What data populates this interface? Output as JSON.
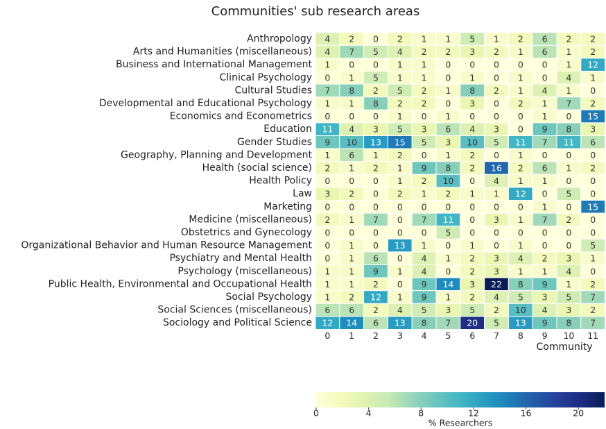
{
  "chart_data": {
    "type": "heatmap",
    "title": "Communities' sub research areas",
    "x_label": "Community",
    "x": [
      0,
      1,
      2,
      3,
      4,
      5,
      6,
      7,
      8,
      9,
      10,
      11
    ],
    "y": [
      "Anthropology",
      "Arts and Humanities (miscellaneous)",
      "Business and International Management",
      "Clinical Psychology",
      "Cultural Studies",
      "Developmental and Educational Psychology",
      "Economics and Econometrics",
      "Education",
      "Gender Studies",
      "Geography, Planning and Development",
      "Health (social science)",
      "Health Policy",
      "Law",
      "Marketing",
      "Medicine (miscellaneous)",
      "Obstetrics and Gynecology",
      "Organizational Behavior and Human Resource Management",
      "Psychiatry and Mental Health",
      "Psychology (miscellaneous)",
      "Public Health, Environmental and Occupational Health",
      "Social Psychology",
      "Social Sciences (miscellaneous)",
      "Sociology and Political Science"
    ],
    "values": [
      [
        4,
        2,
        0,
        2,
        1,
        1,
        5,
        1,
        2,
        6,
        2,
        2
      ],
      [
        4,
        7,
        5,
        4,
        2,
        2,
        3,
        2,
        1,
        6,
        1,
        2
      ],
      [
        1,
        0,
        0,
        1,
        1,
        0,
        0,
        0,
        0,
        0,
        1,
        12
      ],
      [
        0,
        1,
        5,
        1,
        1,
        0,
        1,
        0,
        1,
        0,
        4,
        1
      ],
      [
        7,
        8,
        2,
        5,
        2,
        1,
        8,
        2,
        1,
        4,
        1,
        0
      ],
      [
        1,
        1,
        8,
        2,
        2,
        0,
        3,
        0,
        2,
        1,
        7,
        2
      ],
      [
        0,
        0,
        0,
        1,
        0,
        1,
        0,
        0,
        0,
        1,
        0,
        15
      ],
      [
        11,
        4,
        3,
        5,
        3,
        6,
        4,
        3,
        0,
        9,
        8,
        3
      ],
      [
        9,
        10,
        13,
        15,
        5,
        3,
        10,
        5,
        11,
        7,
        11,
        6
      ],
      [
        1,
        6,
        1,
        2,
        0,
        1,
        2,
        0,
        1,
        0,
        0,
        0
      ],
      [
        2,
        1,
        2,
        1,
        9,
        8,
        2,
        16,
        2,
        6,
        1,
        2
      ],
      [
        0,
        0,
        0,
        1,
        2,
        10,
        0,
        4,
        1,
        1,
        0,
        0
      ],
      [
        3,
        2,
        0,
        2,
        1,
        2,
        1,
        1,
        12,
        0,
        5,
        0
      ],
      [
        0,
        0,
        0,
        0,
        0,
        0,
        0,
        0,
        0,
        1,
        0,
        15
      ],
      [
        2,
        1,
        7,
        0,
        7,
        11,
        0,
        3,
        1,
        7,
        2,
        0
      ],
      [
        0,
        0,
        0,
        0,
        0,
        5,
        0,
        0,
        0,
        0,
        0,
        0
      ],
      [
        0,
        1,
        0,
        13,
        1,
        0,
        1,
        0,
        1,
        0,
        0,
        5
      ],
      [
        0,
        1,
        6,
        0,
        4,
        1,
        2,
        3,
        4,
        2,
        3,
        1
      ],
      [
        1,
        1,
        9,
        1,
        4,
        0,
        2,
        3,
        1,
        1,
        4,
        0
      ],
      [
        1,
        1,
        2,
        0,
        9,
        14,
        3,
        22,
        8,
        9,
        1,
        2
      ],
      [
        1,
        2,
        12,
        1,
        9,
        1,
        2,
        4,
        5,
        3,
        5,
        7
      ],
      [
        6,
        6,
        2,
        4,
        5,
        3,
        5,
        2,
        10,
        4,
        3,
        2
      ],
      [
        12,
        14,
        6,
        13,
        8,
        7,
        20,
        5,
        13,
        9,
        8,
        7
      ]
    ],
    "colormap": "YlGnBu",
    "colorbar": {
      "label": "% Researchers",
      "lim": [
        0,
        22
      ],
      "ticks": [
        0,
        4,
        8,
        12,
        16,
        20
      ]
    }
  }
}
